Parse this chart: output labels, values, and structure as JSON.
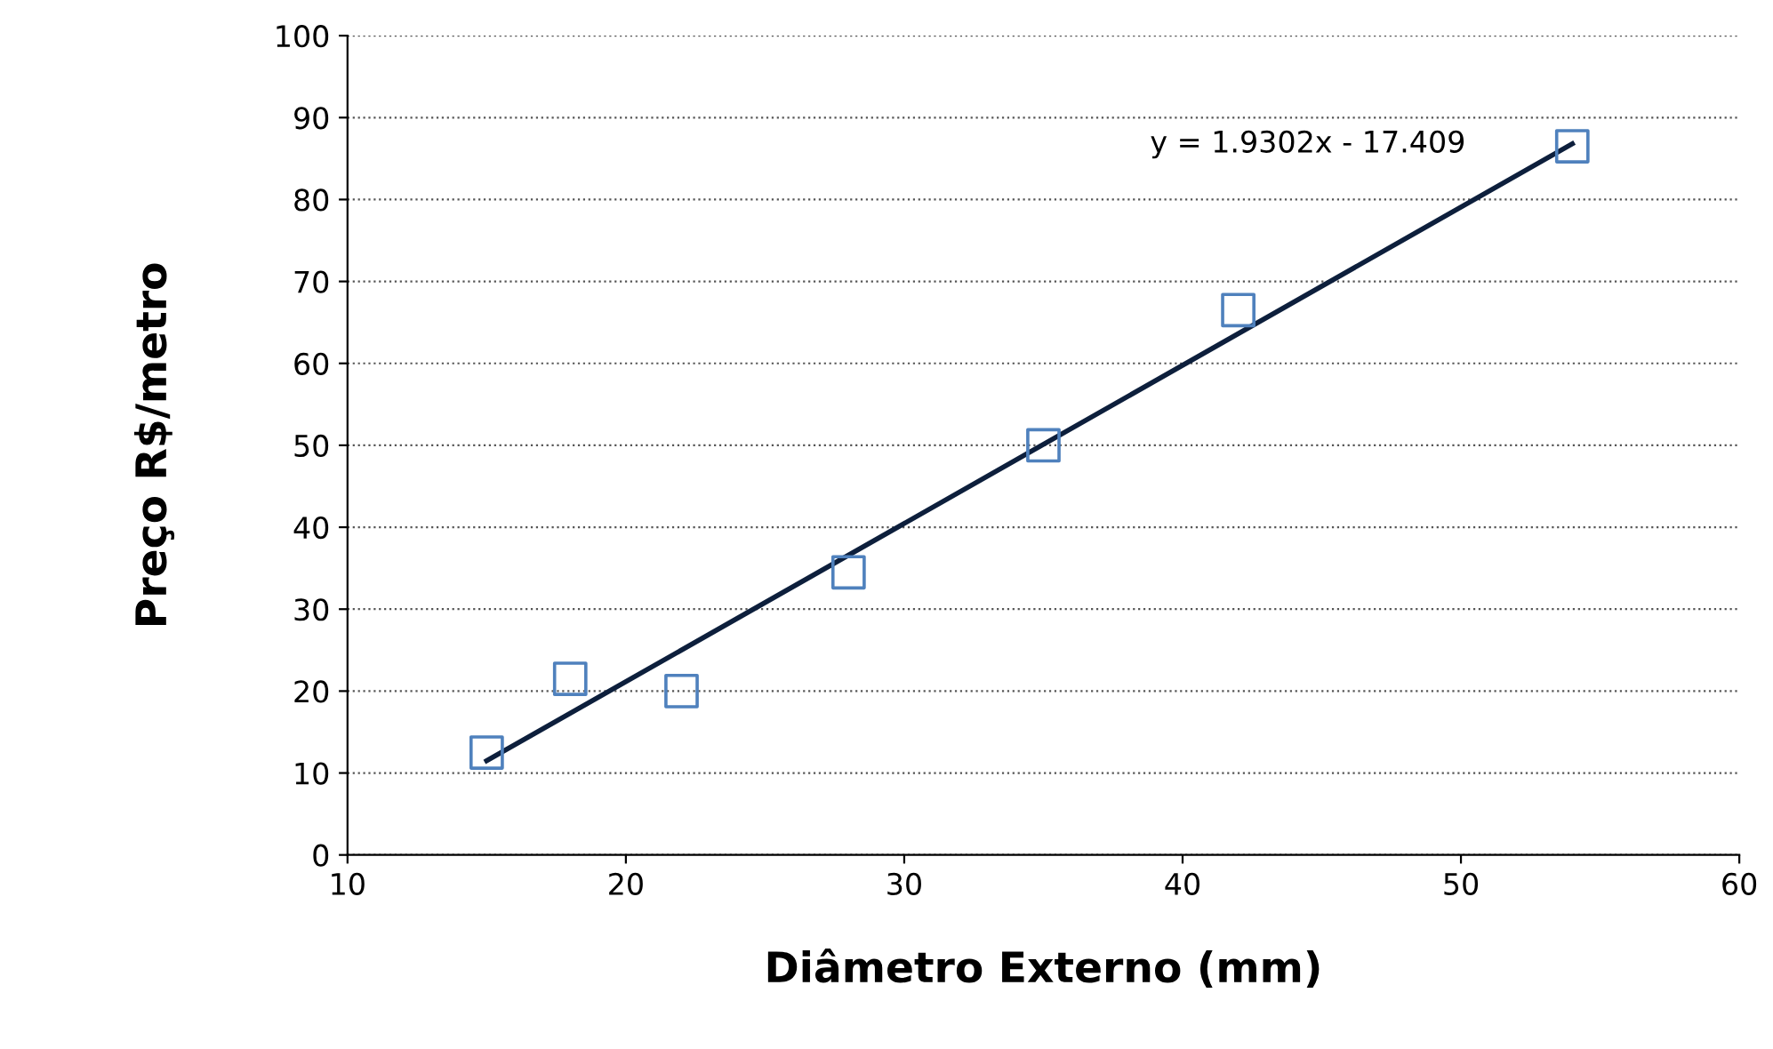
{
  "chart_data": {
    "type": "scatter",
    "xlabel": "Diâmetro Externo (mm)",
    "ylabel": "Preço R$/metro",
    "series": [
      {
        "color": "#4f81bd",
        "marker": "square",
        "x": [
          15,
          18,
          22,
          28,
          35,
          42,
          54
        ],
        "values": [
          12.5,
          21.5,
          20,
          34.5,
          50,
          66.5,
          86.5
        ]
      },
      {
        "type": "line",
        "color": "#0d1f3c",
        "marker": "none",
        "line_style": "solid",
        "x": [
          15,
          54
        ],
        "values": [
          11.5,
          86.8
        ]
      }
    ],
    "annotations": [
      "y = 1.9302x - 17.409"
    ],
    "xlim": [
      10,
      60
    ],
    "xticks": [
      10,
      20,
      30,
      40,
      50,
      60
    ],
    "ylim": [
      0,
      100
    ],
    "yticks": [
      0,
      10,
      20,
      30,
      40,
      50,
      60,
      70,
      80,
      90,
      100
    ],
    "grid": "y",
    "legend": false
  }
}
